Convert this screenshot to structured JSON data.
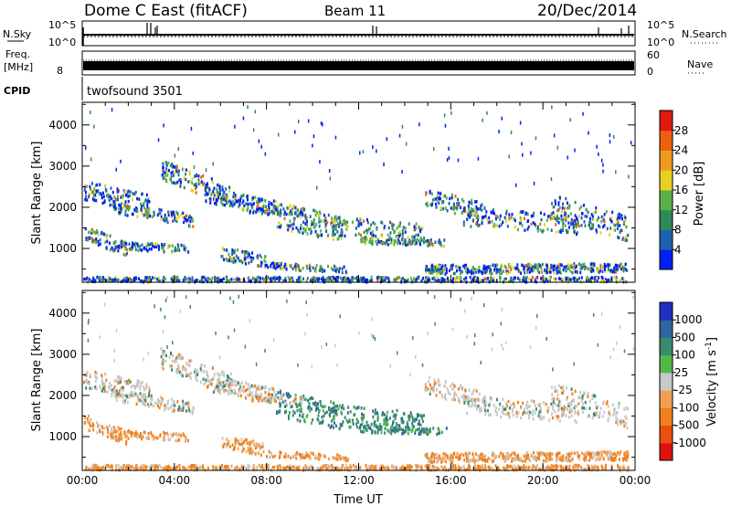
{
  "header": {
    "station": "Dome C East (fitACF)",
    "beam": "Beam 11",
    "date": "20/Dec/2014"
  },
  "panels": {
    "nsky": {
      "label": "N.Sky",
      "ticks_left": [
        "10^5",
        "10^0"
      ],
      "right_label": "N.Search",
      "ticks_right": [
        "10^5",
        "10^0"
      ]
    },
    "freq": {
      "label_1": "Freq.",
      "label_2": "[MHz]",
      "ticks_left": [
        "8"
      ],
      "right_label": "Nave",
      "ticks_right": [
        "60",
        "0"
      ]
    },
    "cpid": {
      "label": "CPID",
      "program": "twofsound 3501"
    }
  },
  "chart_data": [
    {
      "type": "heatmap",
      "name": "power",
      "xlabel": "",
      "ylabel": "Slant Range [km]",
      "x_ticks": [
        "00:00",
        "04:00",
        "08:00",
        "12:00",
        "16:00",
        "20:00",
        "00:00"
      ],
      "y_ticks": [
        "1000",
        "2000",
        "3000",
        "4000"
      ],
      "ylim": [
        180,
        4550
      ],
      "colorbar": {
        "label": "Power [dB]",
        "ticks": [
          "4",
          "8",
          "12",
          "16",
          "20",
          "24",
          "28"
        ],
        "colors": [
          "#0020f0",
          "#2060b0",
          "#2e8a5a",
          "#58b04a",
          "#e8d020",
          "#f09a20",
          "#ec6010",
          "#e01a10"
        ]
      }
    },
    {
      "type": "heatmap",
      "name": "velocity",
      "xlabel": "Time UT",
      "ylabel": "Slant Range [km]",
      "x_ticks": [
        "00:00",
        "04:00",
        "08:00",
        "12:00",
        "16:00",
        "20:00",
        "00:00"
      ],
      "y_ticks": [
        "1000",
        "2000",
        "3000",
        "4000"
      ],
      "ylim": [
        180,
        4550
      ],
      "colorbar": {
        "label": "Velocity [m s^-1]",
        "ticks": [
          "1000",
          "500",
          "100",
          "25",
          "-25",
          "-100",
          "-500",
          "-1000"
        ],
        "colors": [
          "#2030c0",
          "#2e66a0",
          "#3a8a70",
          "#52b84a",
          "#c8c8c8",
          "#f0a050",
          "#f08020",
          "#e85010",
          "#e01010"
        ]
      }
    }
  ]
}
